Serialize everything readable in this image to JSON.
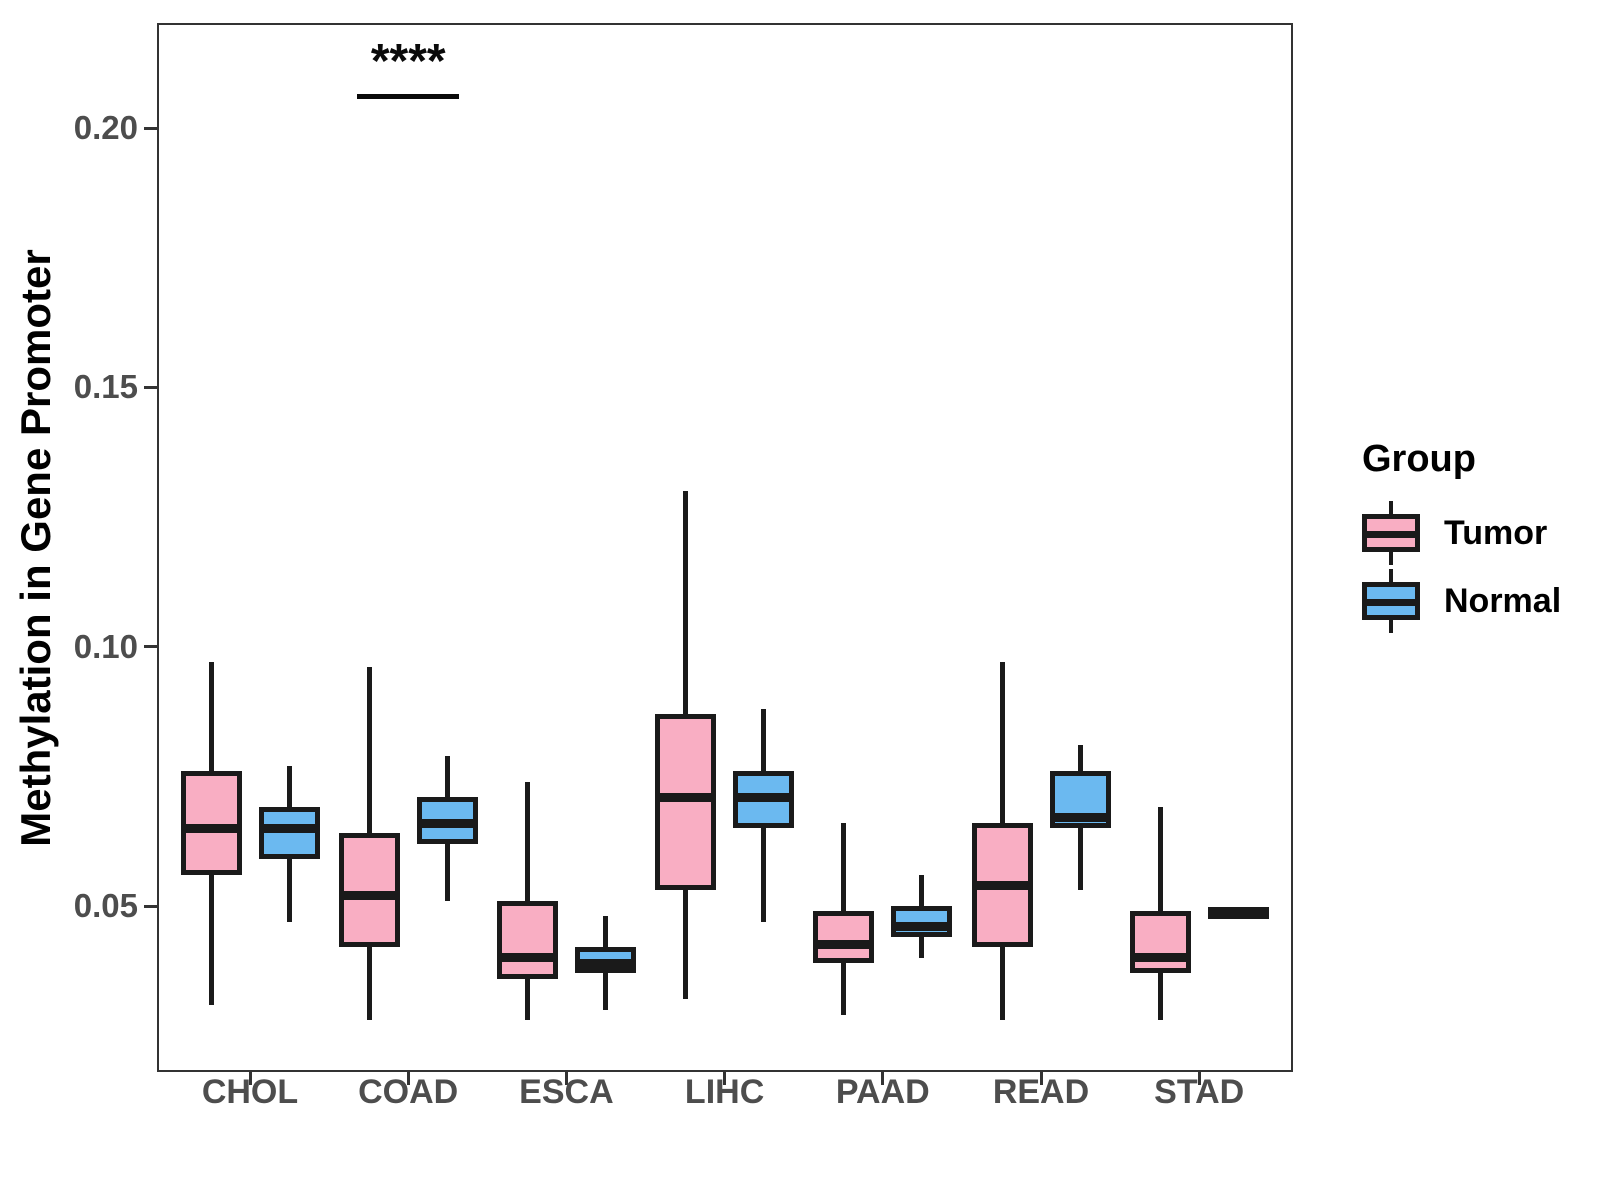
{
  "colors": {
    "tumor_fill": "#F9AEC3",
    "normal_fill": "#6BB9F0",
    "box_border": "#1A1A1A",
    "axis_text": "#4D4D4D",
    "panel_border": "#333333",
    "background": "#FFFFFF"
  },
  "legend": {
    "title": "Group",
    "entries": [
      "Tumor",
      "Normal"
    ]
  },
  "chart_data": {
    "type": "grouped_boxplot",
    "title": "",
    "xlabel": "",
    "ylabel": "Methylation in Gene Promoter",
    "legend_position": "right",
    "grid": false,
    "ylim": [
      0.02,
      0.215
    ],
    "yticks": [
      {
        "value": 0.05,
        "label": "0.05"
      },
      {
        "value": 0.1,
        "label": "0.10"
      },
      {
        "value": 0.15,
        "label": "0.15"
      },
      {
        "value": 0.2,
        "label": "0.20"
      }
    ],
    "categories": [
      "CHOL",
      "COAD",
      "ESCA",
      "LIHC",
      "PAAD",
      "READ",
      "STAD"
    ],
    "series": [
      {
        "name": "Tumor",
        "color": "#F9AEC3",
        "data": [
          {
            "low": 0.031,
            "q1": 0.056,
            "median": 0.065,
            "q3": 0.076,
            "high": 0.097
          },
          {
            "low": 0.028,
            "q1": 0.042,
            "median": 0.052,
            "q3": 0.064,
            "high": 0.096
          },
          {
            "low": 0.028,
            "q1": 0.036,
            "median": 0.04,
            "q3": 0.051,
            "high": 0.074
          },
          {
            "low": 0.032,
            "q1": 0.053,
            "median": 0.071,
            "q3": 0.087,
            "high": 0.13
          },
          {
            "low": 0.029,
            "q1": 0.039,
            "median": 0.0425,
            "q3": 0.049,
            "high": 0.066
          },
          {
            "low": 0.028,
            "q1": 0.042,
            "median": 0.054,
            "q3": 0.066,
            "high": 0.097
          },
          {
            "low": 0.028,
            "q1": 0.037,
            "median": 0.04,
            "q3": 0.049,
            "high": 0.069
          }
        ]
      },
      {
        "name": "Normal",
        "color": "#6BB9F0",
        "data": [
          {
            "low": 0.047,
            "q1": 0.059,
            "median": 0.065,
            "q3": 0.069,
            "high": 0.077
          },
          {
            "low": 0.051,
            "q1": 0.062,
            "median": 0.066,
            "q3": 0.071,
            "high": 0.079
          },
          {
            "low": 0.03,
            "q1": 0.037,
            "median": 0.039,
            "q3": 0.042,
            "high": 0.048
          },
          {
            "low": 0.047,
            "q1": 0.065,
            "median": 0.071,
            "q3": 0.076,
            "high": 0.088
          },
          {
            "low": 0.04,
            "q1": 0.044,
            "median": 0.046,
            "q3": 0.05,
            "high": 0.056
          },
          {
            "low": 0.053,
            "q1": 0.065,
            "median": 0.067,
            "q3": 0.076,
            "high": 0.081
          },
          {
            "low": 0.0475,
            "q1": 0.048,
            "median": 0.0487,
            "q3": 0.0493,
            "high": 0.0498
          }
        ]
      }
    ],
    "annotation": {
      "text": "****",
      "category": "COAD",
      "compares": [
        "Tumor",
        "Normal"
      ],
      "line_y_value": 0.2065
    }
  }
}
